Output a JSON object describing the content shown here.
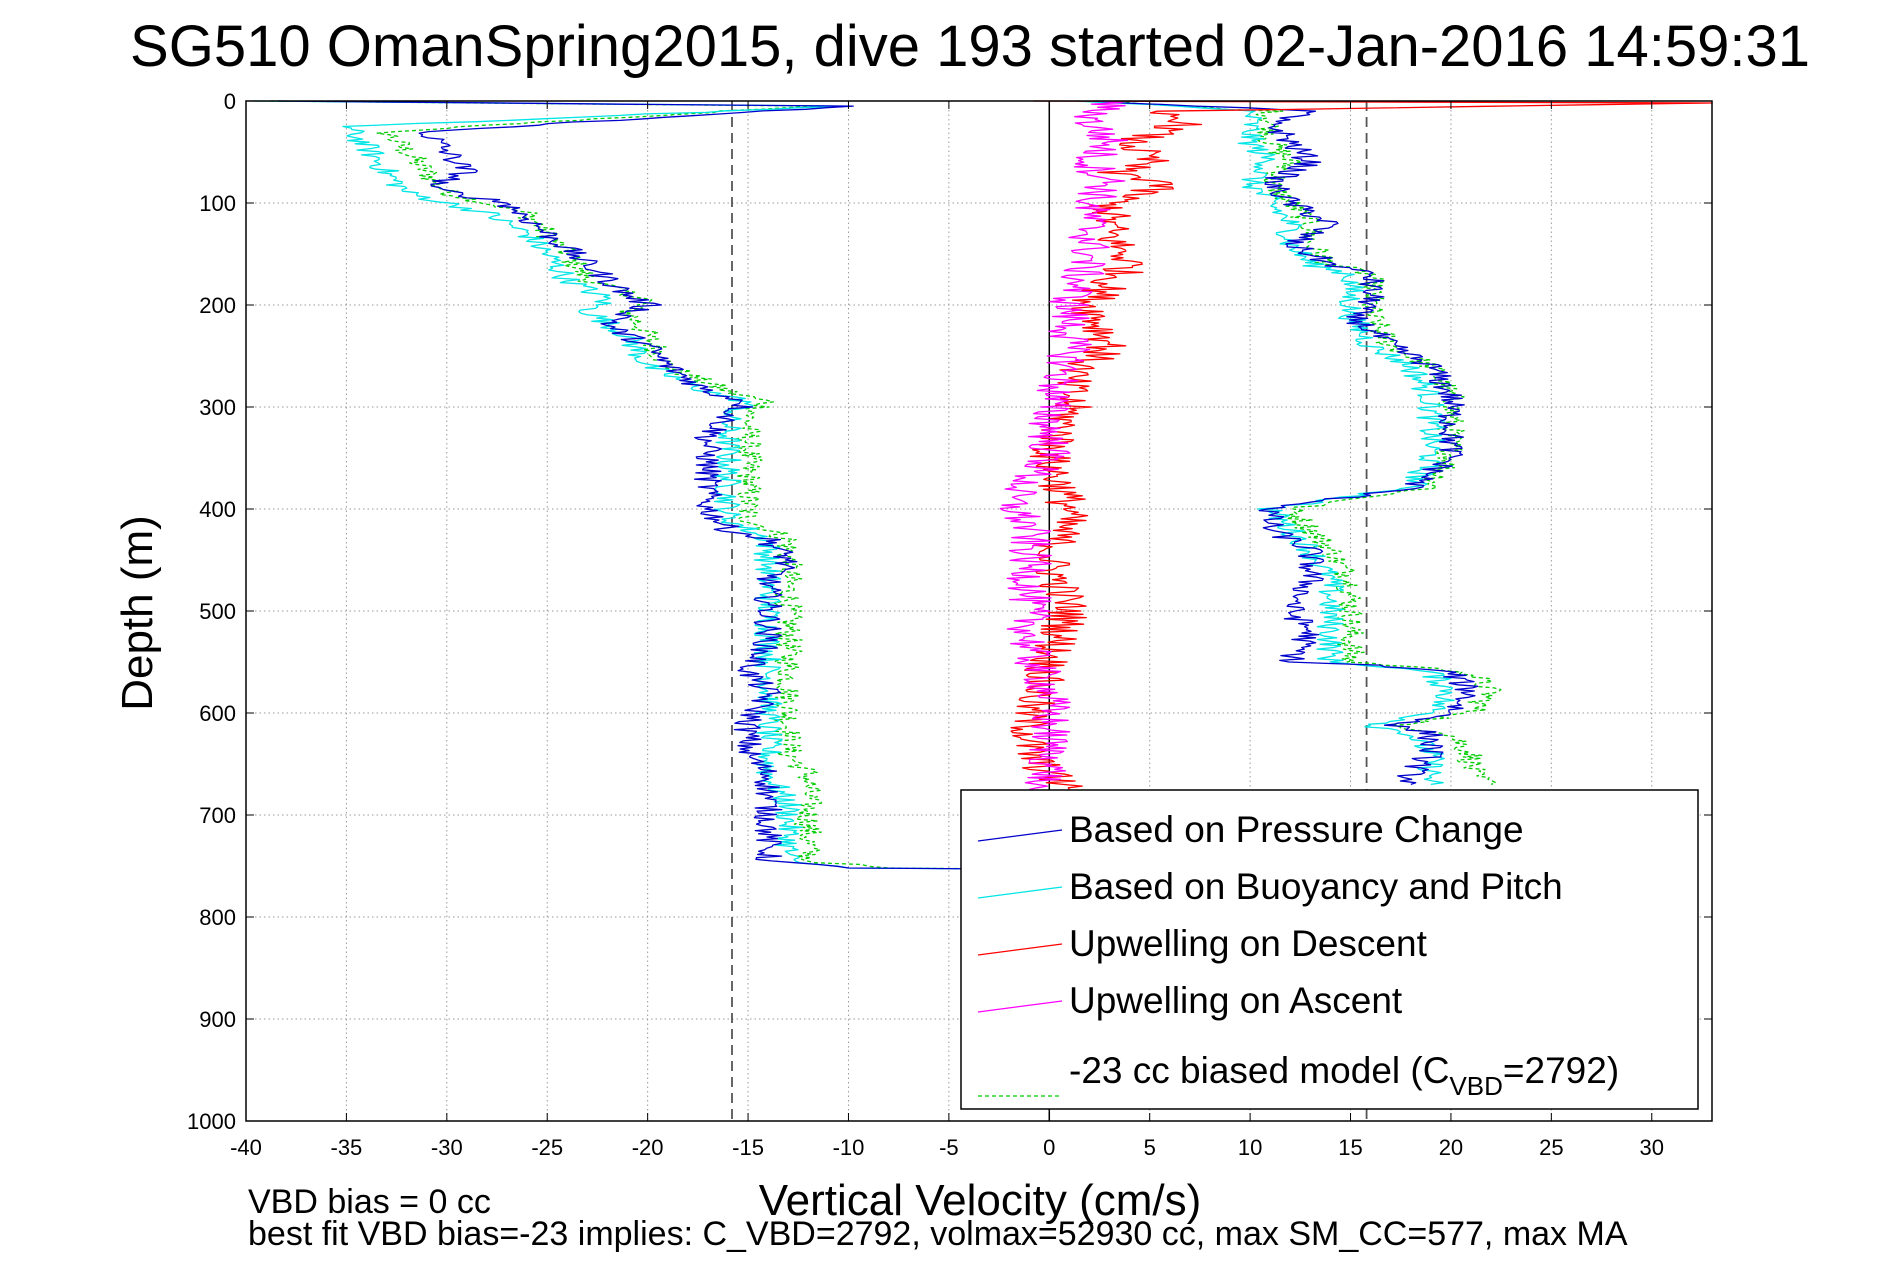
{
  "chart_data": {
    "type": "line",
    "title": "SG510 OmanSpring2015, dive 193 started 02-Jan-2016 14:59:31",
    "xlabel": "Vertical Velocity (cm/s)",
    "ylabel": "Depth (m)",
    "xlim": [
      -40,
      33
    ],
    "ylim": [
      0,
      1000
    ],
    "y_reversed": true,
    "grid": true,
    "legend_position": "bottom-right",
    "x_ticks": [
      "-40",
      "-35",
      "-30",
      "-25",
      "-20",
      "-15",
      "-10",
      "-5",
      "0",
      "5",
      "10",
      "15",
      "20",
      "25",
      "30"
    ],
    "y_ticks": [
      "0",
      "100",
      "200",
      "300",
      "400",
      "500",
      "600",
      "700",
      "800",
      "900",
      "1000"
    ],
    "reference_lines": [
      {
        "x": -15.8,
        "style": "dashed",
        "color": "#555555"
      },
      {
        "x": 15.8,
        "style": "dashed",
        "color": "#555555"
      },
      {
        "x": 0,
        "style": "solid",
        "color": "#000000"
      }
    ],
    "series": [
      {
        "name": "Based on Pressure Change",
        "color": "#0000cc",
        "style": "solid",
        "descent": [
          [
            -39,
            0
          ],
          [
            -10,
            5
          ],
          [
            -31,
            30
          ],
          [
            -30,
            50
          ],
          [
            -29,
            70
          ],
          [
            -31,
            85
          ],
          [
            -27,
            100
          ],
          [
            -25,
            130
          ],
          [
            -23,
            160
          ],
          [
            -21,
            190
          ],
          [
            -20,
            200
          ],
          [
            -22,
            220
          ],
          [
            -20,
            240
          ],
          [
            -19,
            260
          ],
          [
            -17,
            285
          ],
          [
            -15,
            295
          ],
          [
            -16,
            310
          ],
          [
            -17,
            330
          ],
          [
            -17,
            360
          ],
          [
            -17,
            380
          ],
          [
            -17,
            400
          ],
          [
            -16,
            420
          ],
          [
            -14,
            430
          ],
          [
            -13,
            450
          ],
          [
            -14,
            470
          ],
          [
            -14,
            500
          ],
          [
            -14,
            530
          ],
          [
            -15,
            560
          ],
          [
            -14,
            580
          ],
          [
            -15,
            610
          ],
          [
            -15,
            640
          ],
          [
            -14,
            660
          ],
          [
            -14,
            690
          ],
          [
            -14,
            720
          ],
          [
            -14,
            745
          ],
          [
            -10,
            752
          ],
          [
            -2,
            753
          ]
        ],
        "ascent": [
          [
            2,
            0
          ],
          [
            13,
            10
          ],
          [
            11,
            20
          ],
          [
            12,
            40
          ],
          [
            13,
            60
          ],
          [
            11,
            80
          ],
          [
            12,
            100
          ],
          [
            14,
            120
          ],
          [
            12,
            140
          ],
          [
            14,
            160
          ],
          [
            16,
            170
          ],
          [
            16,
            200
          ],
          [
            15,
            210
          ],
          [
            17,
            240
          ],
          [
            19,
            260
          ],
          [
            20,
            290
          ],
          [
            20,
            320
          ],
          [
            20,
            350
          ],
          [
            18,
            380
          ],
          [
            16,
            385
          ],
          [
            11,
            400
          ],
          [
            11,
            420
          ],
          [
            13,
            440
          ],
          [
            13,
            470
          ],
          [
            12,
            500
          ],
          [
            13,
            520
          ],
          [
            12,
            550
          ],
          [
            16,
            553
          ],
          [
            20,
            560
          ],
          [
            21,
            580
          ],
          [
            20,
            600
          ],
          [
            18,
            610
          ],
          [
            17,
            612
          ],
          [
            19,
            620
          ],
          [
            19,
            640
          ],
          [
            18,
            660
          ],
          [
            18,
            670
          ]
        ]
      },
      {
        "name": "Based on Buoyancy and Pitch",
        "color": "#00e5e5",
        "style": "solid",
        "descent": [
          [
            -39,
            0
          ],
          [
            -10,
            5
          ],
          [
            -35,
            25
          ],
          [
            -34,
            45
          ],
          [
            -33,
            70
          ],
          [
            -32,
            90
          ],
          [
            -28,
            110
          ],
          [
            -26,
            130
          ],
          [
            -25,
            150
          ],
          [
            -24,
            175
          ],
          [
            -22,
            195
          ],
          [
            -23,
            205
          ],
          [
            -21,
            230
          ],
          [
            -20,
            260
          ],
          [
            -17,
            285
          ],
          [
            -15,
            295
          ],
          [
            -16,
            310
          ],
          [
            -16,
            330
          ],
          [
            -16,
            360
          ],
          [
            -16,
            380
          ],
          [
            -16,
            410
          ],
          [
            -14,
            430
          ],
          [
            -14,
            450
          ],
          [
            -14,
            470
          ],
          [
            -14,
            500
          ],
          [
            -14,
            530
          ],
          [
            -14,
            560
          ],
          [
            -14,
            580
          ],
          [
            -14,
            610
          ],
          [
            -14,
            640
          ],
          [
            -14,
            660
          ],
          [
            -13,
            690
          ],
          [
            -13,
            720
          ],
          [
            -13,
            745
          ],
          [
            -10,
            752
          ],
          [
            -2,
            753
          ]
        ],
        "ascent": [
          [
            2,
            0
          ],
          [
            10,
            10
          ],
          [
            10,
            20
          ],
          [
            10,
            40
          ],
          [
            11,
            60
          ],
          [
            10,
            80
          ],
          [
            11,
            100
          ],
          [
            12,
            120
          ],
          [
            12,
            140
          ],
          [
            13,
            160
          ],
          [
            15,
            170
          ],
          [
            15,
            200
          ],
          [
            15,
            210
          ],
          [
            16,
            240
          ],
          [
            18,
            260
          ],
          [
            19,
            290
          ],
          [
            19,
            320
          ],
          [
            19,
            350
          ],
          [
            18,
            380
          ],
          [
            16,
            385
          ],
          [
            11,
            400
          ],
          [
            12,
            420
          ],
          [
            13,
            440
          ],
          [
            14,
            470
          ],
          [
            14,
            500
          ],
          [
            14,
            520
          ],
          [
            14,
            550
          ],
          [
            16,
            553
          ],
          [
            19,
            560
          ],
          [
            20,
            580
          ],
          [
            19,
            600
          ],
          [
            17,
            610
          ],
          [
            16,
            612
          ],
          [
            18,
            620
          ],
          [
            19,
            640
          ],
          [
            19,
            660
          ],
          [
            19,
            670
          ]
        ]
      },
      {
        "name": "Upwelling on Descent",
        "color": "#ff0000",
        "style": "solid",
        "points": [
          [
            0,
            0
          ],
          [
            32,
            2
          ],
          [
            5,
            10
          ],
          [
            7,
            20
          ],
          [
            4,
            40
          ],
          [
            5,
            60
          ],
          [
            3,
            70
          ],
          [
            6,
            80
          ],
          [
            3,
            100
          ],
          [
            3,
            130
          ],
          [
            4,
            160
          ],
          [
            2,
            200
          ],
          [
            3,
            240
          ],
          [
            1,
            270
          ],
          [
            1,
            300
          ],
          [
            0,
            350
          ],
          [
            1,
            400
          ],
          [
            0,
            450
          ],
          [
            1,
            500
          ],
          [
            0,
            550
          ],
          [
            -1,
            600
          ],
          [
            -1,
            640
          ],
          [
            0,
            660
          ],
          [
            1,
            675
          ]
        ]
      },
      {
        "name": "Upwelling on Ascent",
        "color": "#ff00ff",
        "style": "solid",
        "points": [
          [
            3,
            0
          ],
          [
            2,
            20
          ],
          [
            3,
            40
          ],
          [
            2,
            60
          ],
          [
            3,
            80
          ],
          [
            2,
            100
          ],
          [
            2,
            150
          ],
          [
            1,
            200
          ],
          [
            1,
            250
          ],
          [
            0,
            300
          ],
          [
            0,
            350
          ],
          [
            -2,
            390
          ],
          [
            -1,
            420
          ],
          [
            -1,
            460
          ],
          [
            -1,
            500
          ],
          [
            -1,
            540
          ],
          [
            0,
            580
          ],
          [
            0,
            620
          ],
          [
            0,
            660
          ],
          [
            -1,
            675
          ]
        ]
      },
      {
        "name": "-23 cc biased model (C",
        "name_sub": "VBD",
        "name_suffix": "=2792)",
        "color": "#00cc00",
        "style": "dashed",
        "descent": [
          [
            -39,
            0
          ],
          [
            -12,
            5
          ],
          [
            -33,
            30
          ],
          [
            -32,
            50
          ],
          [
            -31,
            70
          ],
          [
            -30,
            90
          ],
          [
            -26,
            110
          ],
          [
            -25,
            130
          ],
          [
            -24,
            150
          ],
          [
            -23,
            175
          ],
          [
            -20,
            195
          ],
          [
            -21,
            205
          ],
          [
            -20,
            230
          ],
          [
            -19,
            260
          ],
          [
            -16,
            285
          ],
          [
            -14,
            295
          ],
          [
            -15,
            310
          ],
          [
            -15,
            330
          ],
          [
            -15,
            360
          ],
          [
            -15,
            380
          ],
          [
            -15,
            410
          ],
          [
            -13,
            430
          ],
          [
            -13,
            450
          ],
          [
            -13,
            470
          ],
          [
            -13,
            500
          ],
          [
            -13,
            530
          ],
          [
            -13,
            560
          ],
          [
            -13,
            580
          ],
          [
            -13,
            610
          ],
          [
            -13,
            640
          ],
          [
            -12,
            660
          ],
          [
            -12,
            690
          ],
          [
            -12,
            720
          ],
          [
            -12,
            745
          ],
          [
            -8,
            752
          ],
          [
            -2,
            753
          ]
        ],
        "ascent": [
          [
            2,
            0
          ],
          [
            11,
            10
          ],
          [
            11,
            20
          ],
          [
            11,
            40
          ],
          [
            12,
            60
          ],
          [
            11,
            80
          ],
          [
            12,
            100
          ],
          [
            13,
            120
          ],
          [
            13,
            140
          ],
          [
            14,
            160
          ],
          [
            16,
            170
          ],
          [
            16,
            200
          ],
          [
            16,
            210
          ],
          [
            17,
            240
          ],
          [
            19,
            260
          ],
          [
            20,
            290
          ],
          [
            20,
            320
          ],
          [
            20,
            350
          ],
          [
            19,
            380
          ],
          [
            17,
            385
          ],
          [
            12,
            400
          ],
          [
            13,
            420
          ],
          [
            14,
            440
          ],
          [
            15,
            470
          ],
          [
            15,
            500
          ],
          [
            15,
            520
          ],
          [
            15,
            550
          ],
          [
            17,
            553
          ],
          [
            21,
            560
          ],
          [
            22,
            580
          ],
          [
            21,
            600
          ],
          [
            18,
            610
          ],
          [
            17,
            612
          ],
          [
            20,
            620
          ],
          [
            21,
            640
          ],
          [
            21,
            660
          ],
          [
            22,
            670
          ]
        ]
      }
    ]
  },
  "footer": {
    "line1": "VBD bias = 0 cc",
    "line2": "best fit VBD bias=-23 implies: C_VBD=2792, volmax=52930 cc, max SM_CC=577, max MA"
  }
}
